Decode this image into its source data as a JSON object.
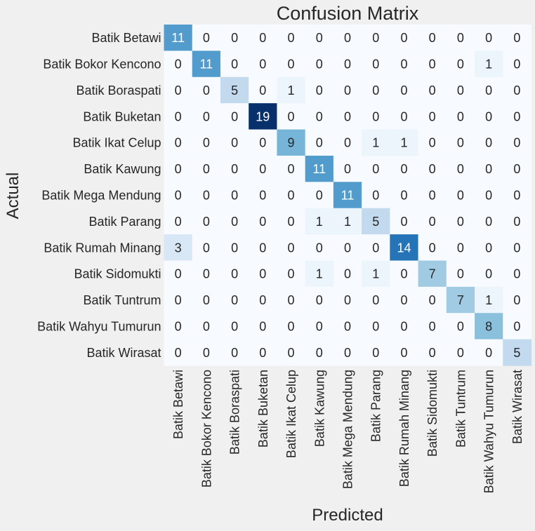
{
  "chart_data": {
    "type": "heatmap",
    "title": "Confusion Matrix",
    "xlabel": "Predicted",
    "ylabel": "Actual",
    "x_categories": [
      "Batik Betawi",
      "Batik Bokor Kencono",
      "Batik Boraspati",
      "Batik Buketan",
      "Batik Ikat Celup",
      "Batik Kawung",
      "Batik Mega Mendung",
      "Batik Parang",
      "Batik Rumah Minang",
      "Batik Sidomukti",
      "Batik Tuntrum",
      "Batik Wahyu Tumurun",
      "Batik Wirasat"
    ],
    "y_categories": [
      "Batik Betawi",
      "Batik Bokor Kencono",
      "Batik Boraspati",
      "Batik Buketan",
      "Batik Ikat Celup",
      "Batik Kawung",
      "Batik Mega Mendung",
      "Batik Parang",
      "Batik Rumah Minang",
      "Batik Sidomukti",
      "Batik Tuntrum",
      "Batik Wahyu Tumurun",
      "Batik Wirasat"
    ],
    "values": [
      [
        11,
        0,
        0,
        0,
        0,
        0,
        0,
        0,
        0,
        0,
        0,
        0,
        0
      ],
      [
        0,
        11,
        0,
        0,
        0,
        0,
        0,
        0,
        0,
        0,
        0,
        1,
        0
      ],
      [
        0,
        0,
        5,
        0,
        1,
        0,
        0,
        0,
        0,
        0,
        0,
        0,
        0
      ],
      [
        0,
        0,
        0,
        19,
        0,
        0,
        0,
        0,
        0,
        0,
        0,
        0,
        0
      ],
      [
        0,
        0,
        0,
        0,
        9,
        0,
        0,
        1,
        1,
        0,
        0,
        0,
        0
      ],
      [
        0,
        0,
        0,
        0,
        0,
        11,
        0,
        0,
        0,
        0,
        0,
        0,
        0
      ],
      [
        0,
        0,
        0,
        0,
        0,
        0,
        11,
        0,
        0,
        0,
        0,
        0,
        0
      ],
      [
        0,
        0,
        0,
        0,
        0,
        1,
        1,
        5,
        0,
        0,
        0,
        0,
        0
      ],
      [
        3,
        0,
        0,
        0,
        0,
        0,
        0,
        0,
        14,
        0,
        0,
        0,
        0
      ],
      [
        0,
        0,
        0,
        0,
        0,
        1,
        0,
        1,
        0,
        7,
        0,
        0,
        0
      ],
      [
        0,
        0,
        0,
        0,
        0,
        0,
        0,
        0,
        0,
        0,
        7,
        1,
        0
      ],
      [
        0,
        0,
        0,
        0,
        0,
        0,
        0,
        0,
        0,
        0,
        0,
        8,
        0
      ],
      [
        0,
        0,
        0,
        0,
        0,
        0,
        0,
        0,
        0,
        0,
        0,
        0,
        5
      ]
    ],
    "colormap": "Blues",
    "vmin": 0,
    "vmax": 19,
    "colorbar": false,
    "grid": false
  }
}
